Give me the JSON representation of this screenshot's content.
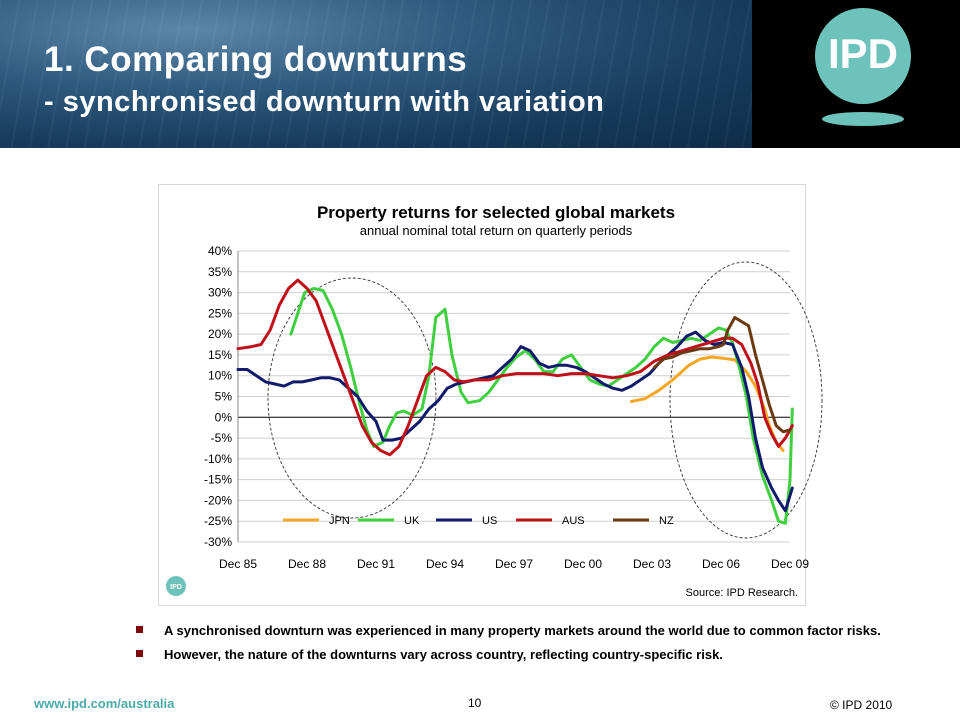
{
  "header": {
    "title": "1. Comparing downturns",
    "subtitle": "- synchronised downturn with variation",
    "logo_text": "IPD"
  },
  "chart_data": {
    "type": "line",
    "title": "Property returns for selected global markets",
    "subtitle": "annual nominal total return on quarterly periods",
    "ylim": [
      -30,
      40
    ],
    "yticks": [
      "40%",
      "35%",
      "30%",
      "25%",
      "20%",
      "15%",
      "10%",
      "5%",
      "0%",
      "-5%",
      "-10%",
      "-15%",
      "-20%",
      "-25%",
      "-30%"
    ],
    "xticks": [
      "Dec 85",
      "Dec 88",
      "Dec 91",
      "Dec 94",
      "Dec 97",
      "Dec 00",
      "Dec 03",
      "Dec 06",
      "Dec 09"
    ],
    "x_range": [
      1985.9,
      2009.9
    ],
    "grid": true,
    "legend_position": "bottom-inside",
    "series": [
      {
        "name": "JPN",
        "color": "#f5a623",
        "points": [
          [
            2003.0,
            3.8
          ],
          [
            2003.6,
            4.5
          ],
          [
            2004.2,
            6.5
          ],
          [
            2004.8,
            9.0
          ],
          [
            2005.5,
            12.5
          ],
          [
            2006.0,
            14.0
          ],
          [
            2006.5,
            14.5
          ],
          [
            2007.0,
            14.2
          ],
          [
            2007.5,
            13.8
          ],
          [
            2008.0,
            11.0
          ],
          [
            2008.4,
            7.5
          ],
          [
            2008.8,
            2.0
          ],
          [
            2009.0,
            -2.0
          ],
          [
            2009.3,
            -6.0
          ],
          [
            2009.6,
            -8.0
          ]
        ]
      },
      {
        "name": "UK",
        "color": "#3fcf3f",
        "points": [
          [
            1988.2,
            20
          ],
          [
            1988.5,
            25
          ],
          [
            1988.8,
            30
          ],
          [
            1989.2,
            31
          ],
          [
            1989.6,
            30.5
          ],
          [
            1990.0,
            26
          ],
          [
            1990.4,
            20
          ],
          [
            1990.8,
            12
          ],
          [
            1991.2,
            3
          ],
          [
            1991.5,
            -3
          ],
          [
            1991.8,
            -7
          ],
          [
            1992.2,
            -6
          ],
          [
            1992.5,
            -2
          ],
          [
            1992.8,
            1
          ],
          [
            1993.1,
            1.5
          ],
          [
            1993.5,
            0.5
          ],
          [
            1993.9,
            2
          ],
          [
            1994.2,
            10
          ],
          [
            1994.5,
            24
          ],
          [
            1994.9,
            26
          ],
          [
            1995.2,
            15
          ],
          [
            1995.6,
            6
          ],
          [
            1995.9,
            3.5
          ],
          [
            1996.4,
            4
          ],
          [
            1996.8,
            6
          ],
          [
            1997.2,
            9
          ],
          [
            1997.6,
            12
          ],
          [
            1998.0,
            14.5
          ],
          [
            1998.4,
            16
          ],
          [
            1998.8,
            14
          ],
          [
            1999.2,
            11
          ],
          [
            1999.6,
            11
          ],
          [
            2000.0,
            14
          ],
          [
            2000.4,
            15
          ],
          [
            2000.8,
            12
          ],
          [
            2001.2,
            9
          ],
          [
            2001.6,
            8
          ],
          [
            2002.0,
            7.5
          ],
          [
            2002.4,
            9
          ],
          [
            2002.8,
            10.5
          ],
          [
            2003.2,
            12
          ],
          [
            2003.6,
            14
          ],
          [
            2004.0,
            17
          ],
          [
            2004.4,
            19
          ],
          [
            2004.8,
            18
          ],
          [
            2005.2,
            18.5
          ],
          [
            2005.6,
            19
          ],
          [
            2006.0,
            18.5
          ],
          [
            2006.4,
            20
          ],
          [
            2006.8,
            21.5
          ],
          [
            2007.1,
            21
          ],
          [
            2007.4,
            18
          ],
          [
            2007.7,
            12
          ],
          [
            2008.0,
            5
          ],
          [
            2008.3,
            -5
          ],
          [
            2008.7,
            -14
          ],
          [
            2009.1,
            -20
          ],
          [
            2009.4,
            -25
          ],
          [
            2009.7,
            -25.5
          ],
          [
            2009.9,
            -15
          ],
          [
            2010.0,
            2
          ]
        ]
      },
      {
        "name": "US",
        "color": "#111a6b",
        "points": [
          [
            1985.9,
            11.5
          ],
          [
            1986.3,
            11.5
          ],
          [
            1986.7,
            10
          ],
          [
            1987.1,
            8.5
          ],
          [
            1987.5,
            8
          ],
          [
            1987.9,
            7.5
          ],
          [
            1988.3,
            8.5
          ],
          [
            1988.7,
            8.5
          ],
          [
            1989.1,
            9
          ],
          [
            1989.5,
            9.5
          ],
          [
            1989.9,
            9.5
          ],
          [
            1990.3,
            9
          ],
          [
            1990.7,
            7
          ],
          [
            1991.1,
            5
          ],
          [
            1991.5,
            1.5
          ],
          [
            1991.9,
            -1
          ],
          [
            1992.2,
            -5.5
          ],
          [
            1992.6,
            -5.5
          ],
          [
            1993.0,
            -5
          ],
          [
            1993.4,
            -3
          ],
          [
            1993.8,
            -1
          ],
          [
            1994.2,
            2
          ],
          [
            1994.6,
            4
          ],
          [
            1995.0,
            7
          ],
          [
            1995.4,
            8
          ],
          [
            1995.8,
            8.5
          ],
          [
            1996.2,
            9
          ],
          [
            1996.6,
            9.5
          ],
          [
            1997.0,
            10
          ],
          [
            1997.4,
            12
          ],
          [
            1997.8,
            14
          ],
          [
            1998.2,
            17
          ],
          [
            1998.6,
            16
          ],
          [
            1999.0,
            13
          ],
          [
            1999.4,
            12
          ],
          [
            1999.8,
            12.5
          ],
          [
            2000.2,
            12.5
          ],
          [
            2000.6,
            12
          ],
          [
            2001.0,
            11
          ],
          [
            2001.4,
            9.5
          ],
          [
            2001.8,
            8
          ],
          [
            2002.2,
            7
          ],
          [
            2002.6,
            6.5
          ],
          [
            2003.0,
            7.5
          ],
          [
            2003.4,
            9
          ],
          [
            2003.8,
            10.5
          ],
          [
            2004.2,
            13
          ],
          [
            2004.6,
            15
          ],
          [
            2005.0,
            17
          ],
          [
            2005.4,
            19.5
          ],
          [
            2005.8,
            20.5
          ],
          [
            2006.2,
            18.5
          ],
          [
            2006.6,
            17.5
          ],
          [
            2007.0,
            18
          ],
          [
            2007.4,
            17.5
          ],
          [
            2007.8,
            12
          ],
          [
            2008.1,
            5
          ],
          [
            2008.4,
            -5
          ],
          [
            2008.7,
            -12
          ],
          [
            2009.1,
            -17
          ],
          [
            2009.4,
            -20
          ],
          [
            2009.7,
            -22.5
          ],
          [
            2010.0,
            -17
          ]
        ]
      },
      {
        "name": "AUS",
        "color": "#c0101a",
        "points": [
          [
            1985.9,
            16.5
          ],
          [
            1986.5,
            17
          ],
          [
            1986.9,
            17.5
          ],
          [
            1987.3,
            21
          ],
          [
            1987.7,
            27
          ],
          [
            1988.1,
            31
          ],
          [
            1988.5,
            33
          ],
          [
            1988.9,
            31
          ],
          [
            1989.3,
            28
          ],
          [
            1989.7,
            22
          ],
          [
            1990.1,
            16
          ],
          [
            1990.5,
            10
          ],
          [
            1990.9,
            4
          ],
          [
            1991.3,
            -2
          ],
          [
            1991.7,
            -6
          ],
          [
            1992.1,
            -8
          ],
          [
            1992.5,
            -9
          ],
          [
            1992.9,
            -7
          ],
          [
            1993.3,
            -2
          ],
          [
            1993.7,
            4
          ],
          [
            1994.1,
            10
          ],
          [
            1994.5,
            12
          ],
          [
            1994.9,
            11
          ],
          [
            1995.3,
            9
          ],
          [
            1995.7,
            8.5
          ],
          [
            1996.2,
            9
          ],
          [
            1996.8,
            9
          ],
          [
            1997.4,
            10
          ],
          [
            1998.0,
            10.5
          ],
          [
            1998.6,
            10.5
          ],
          [
            1999.2,
            10.5
          ],
          [
            1999.8,
            10
          ],
          [
            2000.4,
            10.5
          ],
          [
            2001.0,
            10.5
          ],
          [
            2001.6,
            10
          ],
          [
            2002.2,
            9.5
          ],
          [
            2002.8,
            10
          ],
          [
            2003.4,
            11
          ],
          [
            2004.0,
            13.5
          ],
          [
            2004.6,
            15
          ],
          [
            2005.2,
            16
          ],
          [
            2005.8,
            17
          ],
          [
            2006.4,
            18
          ],
          [
            2007.0,
            19
          ],
          [
            2007.4,
            19
          ],
          [
            2007.8,
            17.5
          ],
          [
            2008.2,
            13
          ],
          [
            2008.5,
            8
          ],
          [
            2008.8,
            0
          ],
          [
            2009.1,
            -4
          ],
          [
            2009.4,
            -7
          ],
          [
            2009.7,
            -5
          ],
          [
            2010.0,
            -2
          ]
        ]
      },
      {
        "name": "NZ",
        "color": "#6b3a12",
        "points": [
          [
            2004.0,
            12
          ],
          [
            2004.4,
            14
          ],
          [
            2004.8,
            14.5
          ],
          [
            2005.2,
            15.5
          ],
          [
            2005.6,
            16
          ],
          [
            2006.0,
            16.5
          ],
          [
            2006.4,
            16.5
          ],
          [
            2006.8,
            17
          ],
          [
            2007.0,
            17.5
          ],
          [
            2007.2,
            21
          ],
          [
            2007.5,
            24
          ],
          [
            2007.8,
            23
          ],
          [
            2008.1,
            22
          ],
          [
            2008.4,
            15
          ],
          [
            2008.7,
            9
          ],
          [
            2009.0,
            3
          ],
          [
            2009.3,
            -2
          ],
          [
            2009.6,
            -3.5
          ],
          [
            2009.9,
            -3
          ]
        ]
      }
    ],
    "source_label": "Source: IPD Research."
  },
  "bullets": [
    "A synchronised downturn was experienced in many property markets around the world due to common factor risks.",
    "However, the nature of the downturns vary across country, reflecting country-specific risk."
  ],
  "footer": {
    "url": "www.ipd.com/australia",
    "page_number": "10",
    "copyright": "© IPD 2010"
  }
}
